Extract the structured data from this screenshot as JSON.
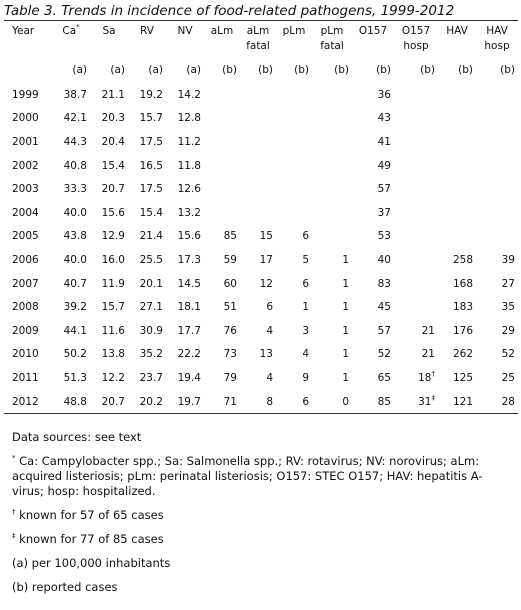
{
  "title": "Table 3. Trends in incidence of food-related pathogens, 1999-2012",
  "table": {
    "header": [
      {
        "lines": [
          "Year"
        ]
      },
      {
        "lines": [
          "Ca"
        ],
        "sup": "*"
      },
      {
        "lines": [
          "Sa"
        ]
      },
      {
        "lines": [
          "RV"
        ]
      },
      {
        "lines": [
          "NV"
        ]
      },
      {
        "lines": [
          "aLm"
        ]
      },
      {
        "lines": [
          "aLm",
          "fatal"
        ]
      },
      {
        "lines": [
          "pLm"
        ]
      },
      {
        "lines": [
          "pLm",
          "fatal"
        ]
      },
      {
        "lines": [
          "O157"
        ]
      },
      {
        "lines": [
          "O157",
          "hosp"
        ]
      },
      {
        "lines": [
          "HAV"
        ]
      },
      {
        "lines": [
          "HAV",
          "hosp"
        ]
      }
    ],
    "units": [
      null,
      "(a)",
      "(a)",
      "(a)",
      "(a)",
      "(b)",
      "(b)",
      "(b)",
      "(b)",
      "(b)",
      "(b)",
      "(b)",
      "(b)"
    ],
    "rows": [
      [
        "1999",
        "38.7",
        "21.1",
        "19.2",
        "14.2",
        null,
        null,
        null,
        null,
        "36",
        null,
        null,
        null
      ],
      [
        "2000",
        "42.1",
        "20.3",
        "15.7",
        "12.8",
        null,
        null,
        null,
        null,
        "43",
        null,
        null,
        null
      ],
      [
        "2001",
        "44.3",
        "20.4",
        "17.5",
        "11.2",
        null,
        null,
        null,
        null,
        "41",
        null,
        null,
        null
      ],
      [
        "2002",
        "40.8",
        "15.4",
        "16.5",
        "11.8",
        null,
        null,
        null,
        null,
        "49",
        null,
        null,
        null
      ],
      [
        "2003",
        "33.3",
        "20.7",
        "17.5",
        "12.6",
        null,
        null,
        null,
        null,
        "57",
        null,
        null,
        null
      ],
      [
        "2004",
        "40.0",
        "15.6",
        "15.4",
        "13.2",
        null,
        null,
        null,
        null,
        "37",
        null,
        null,
        null
      ],
      [
        "2005",
        "43.8",
        "12.9",
        "21.4",
        "15.6",
        "85",
        "15",
        "6",
        null,
        "53",
        null,
        null,
        null
      ],
      [
        "2006",
        "40.0",
        "16.0",
        "25.5",
        "17.3",
        "59",
        "17",
        "5",
        "1",
        "40",
        null,
        "258",
        "39"
      ],
      [
        "2007",
        "40.7",
        "11.9",
        "20.1",
        "14.5",
        "60",
        "12",
        "6",
        "1",
        "83",
        null,
        "168",
        "27"
      ],
      [
        "2008",
        "39.2",
        "15.7",
        "27.1",
        "18.1",
        "51",
        "6",
        "1",
        "1",
        "45",
        null,
        "183",
        "35"
      ],
      [
        "2009",
        "44.1",
        "11.6",
        "30.9",
        "17.7",
        "76",
        "4",
        "3",
        "1",
        "57",
        "21",
        "176",
        "29"
      ],
      [
        "2010",
        "50.2",
        "13.8",
        "35.2",
        "22.2",
        "73",
        "13",
        "4",
        "1",
        "52",
        "21",
        "262",
        "52"
      ],
      [
        "2011",
        "51.3",
        "12.2",
        "23.7",
        "19.4",
        "79",
        "4",
        "9",
        "1",
        "65",
        {
          "text": "18",
          "sup": "†"
        },
        "125",
        "25"
      ],
      [
        "2012",
        "48.8",
        "20.7",
        "20.2",
        "19.7",
        "71",
        "8",
        "6",
        "0",
        "85",
        {
          "text": "31",
          "sup": "‡"
        },
        "121",
        "28"
      ]
    ]
  },
  "notes": [
    {
      "text": "Data sources: see text"
    },
    {
      "mark": "*",
      "text": "Ca: Campylobacter spp.; Sa: Salmonella spp.; RV: rotavirus; NV: norovirus; aLm: acquired listeriosis; pLm: perinatal listeriosis; O157: STEC O157; HAV: hepatitis A-virus; hosp: hospitalized."
    },
    {
      "mark": "†",
      "text": "known for 57 of 65 cases"
    },
    {
      "mark": "‡",
      "text": "known for 77 of 85 cases"
    },
    {
      "text": "(a) per 100,000 inhabitants"
    },
    {
      "text": "(b) reported cases"
    }
  ]
}
